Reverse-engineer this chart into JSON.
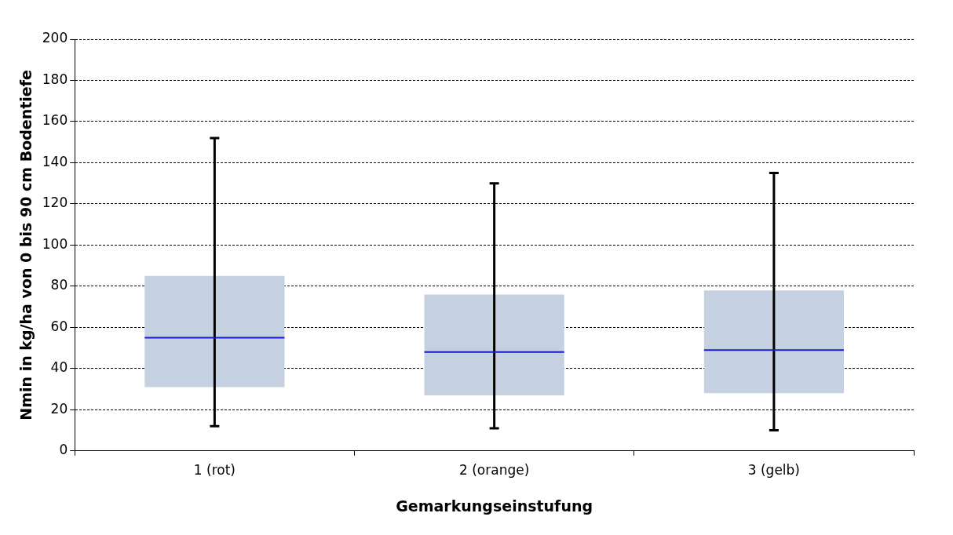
{
  "chart_data": {
    "type": "box",
    "xlabel": "Gemarkungseinstufung",
    "ylabel": "Nmin in kg/ha von 0 bis 90 cm Bodentiefe",
    "categories": [
      "1 (rot)",
      "2 (orange)",
      "3 (gelb)"
    ],
    "boxes": [
      {
        "low": 12,
        "q1": 31,
        "median": 55,
        "q3": 85,
        "high": 152
      },
      {
        "low": 11,
        "q1": 27,
        "median": 48,
        "q3": 76,
        "high": 130
      },
      {
        "low": 10,
        "q1": 28,
        "median": 49,
        "q3": 78,
        "high": 135
      }
    ],
    "color": "#c5d0e0",
    "ylim": [
      0,
      200
    ],
    "yticks": [
      0,
      20,
      40,
      60,
      80,
      100,
      120,
      140,
      160,
      180,
      200
    ],
    "grid": "y",
    "legend": false
  }
}
